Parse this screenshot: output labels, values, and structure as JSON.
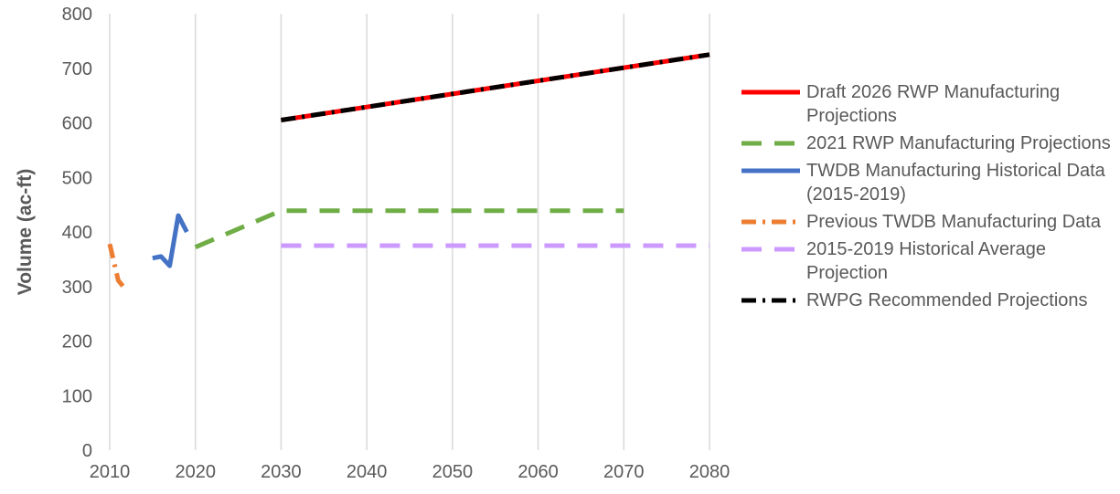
{
  "chart_data": {
    "type": "line",
    "ylabel": "Volume (ac-ft)",
    "xlim": [
      2010,
      2080
    ],
    "ylim": [
      0,
      800
    ],
    "x_ticks": [
      "2010",
      "2020",
      "2030",
      "2040",
      "2050",
      "2060",
      "2070",
      "2080"
    ],
    "y_ticks": [
      "0",
      "100",
      "200",
      "300",
      "400",
      "500",
      "600",
      "700",
      "800"
    ],
    "grid": "vertical",
    "legend_position": "right",
    "series": [
      {
        "name": "Draft 2026 RWP Manufacturing Projections",
        "color": "#ff0000",
        "style": "solid",
        "points": [
          [
            2030,
            605
          ],
          [
            2080,
            725
          ]
        ]
      },
      {
        "name": "2021 RWP Manufacturing Projections",
        "color": "#70ad47",
        "style": "dashed",
        "points": [
          [
            2020,
            372
          ],
          [
            2030,
            439
          ],
          [
            2040,
            439
          ],
          [
            2050,
            439
          ],
          [
            2060,
            439
          ],
          [
            2070,
            439
          ]
        ]
      },
      {
        "name": "TWDB Manufacturing Historical Data (2015-2019)",
        "color": "#4472c4",
        "style": "solid",
        "points": [
          [
            2015,
            352
          ],
          [
            2016,
            355
          ],
          [
            2017,
            338
          ],
          [
            2018,
            430
          ],
          [
            2019,
            400
          ]
        ]
      },
      {
        "name": "Previous TWDB Manufacturing Data",
        "color": "#ed7d31",
        "style": "dash-dot",
        "points": [
          [
            2010,
            378
          ],
          [
            2011,
            311
          ],
          [
            2012,
            292
          ]
        ]
      },
      {
        "name": "2015-2019 Historical Average Projection",
        "color": "#cc99ff",
        "style": "dashed",
        "points": [
          [
            2030,
            375
          ],
          [
            2080,
            375
          ]
        ]
      },
      {
        "name": "RWPG Recommended Projections",
        "color": "#000000",
        "style": "dash-dot",
        "points": [
          [
            2030,
            605
          ],
          [
            2080,
            725
          ]
        ]
      }
    ]
  }
}
